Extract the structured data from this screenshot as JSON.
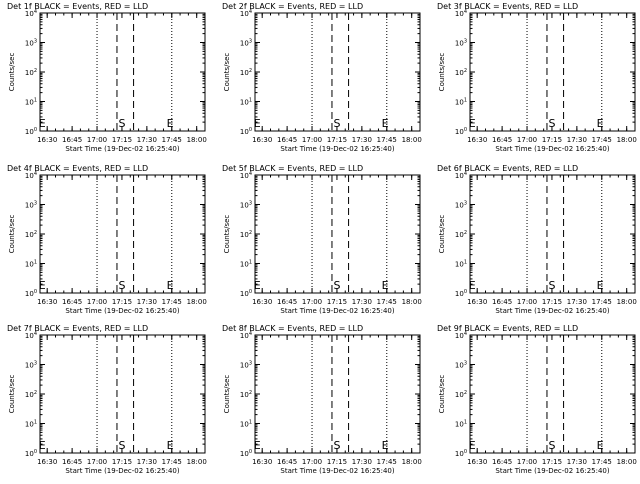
{
  "chart_data": [
    {
      "type": "line",
      "title": "Det 1f BLACK = Events, RED = LLD",
      "xlabel": "Start Time (19-Dec-02 16:25:40)",
      "ylabel": "Counts/sec",
      "x_range": [
        "16:25:40",
        "18:05"
      ],
      "xticks": [
        "16:30",
        "16:45",
        "17:00",
        "17:15",
        "17:30",
        "17:45",
        "18:00"
      ],
      "y_scale": "log",
      "ylim": [
        1,
        10000
      ],
      "yticks": [
        "10^0",
        "10^1",
        "10^2",
        "10^3",
        "10^4"
      ],
      "dotted_lines": [
        "16:25:40",
        "17:00",
        "17:45",
        "18:05"
      ],
      "dashed_lines": [
        "17:12",
        "17:22"
      ],
      "markers": [
        {
          "label": "E",
          "x": "16:27"
        },
        {
          "label": "S",
          "x": "17:15"
        },
        {
          "label": "E",
          "x": "17:44"
        }
      ],
      "series": []
    },
    {
      "type": "line",
      "title": "Det 2f BLACK = Events, RED = LLD",
      "xlabel": "Start Time (19-Dec-02 16:25:40)",
      "ylabel": "Counts/sec",
      "x_range": [
        "16:25:40",
        "18:05"
      ],
      "xticks": [
        "16:30",
        "16:45",
        "17:00",
        "17:15",
        "17:30",
        "17:45",
        "18:00"
      ],
      "y_scale": "log",
      "ylim": [
        1,
        10000
      ],
      "yticks": [
        "10^0",
        "10^1",
        "10^2",
        "10^3",
        "10^4"
      ],
      "dotted_lines": [
        "16:25:40",
        "17:00",
        "17:45",
        "18:05"
      ],
      "dashed_lines": [
        "17:12",
        "17:22"
      ],
      "markers": [
        {
          "label": "E",
          "x": "16:27"
        },
        {
          "label": "S",
          "x": "17:15"
        },
        {
          "label": "E",
          "x": "17:44"
        }
      ],
      "series": []
    },
    {
      "type": "line",
      "title": "Det 3f BLACK = Events, RED = LLD",
      "xlabel": "Start Time (19-Dec-02 16:25:40)",
      "ylabel": "Counts/sec",
      "x_range": [
        "16:25:40",
        "18:05"
      ],
      "xticks": [
        "16:30",
        "16:45",
        "17:00",
        "17:15",
        "17:30",
        "17:45",
        "18:00"
      ],
      "y_scale": "log",
      "ylim": [
        1,
        10000
      ],
      "yticks": [
        "10^0",
        "10^1",
        "10^2",
        "10^3",
        "10^4"
      ],
      "dotted_lines": [
        "16:25:40",
        "17:00",
        "17:45",
        "18:05"
      ],
      "dashed_lines": [
        "17:12",
        "17:22"
      ],
      "markers": [
        {
          "label": "E",
          "x": "16:27"
        },
        {
          "label": "S",
          "x": "17:15"
        },
        {
          "label": "E",
          "x": "17:44"
        }
      ],
      "series": []
    },
    {
      "type": "line",
      "title": "Det 4f BLACK = Events, RED = LLD",
      "xlabel": "Start Time (19-Dec-02 16:25:40)",
      "ylabel": "Counts/sec",
      "x_range": [
        "16:25:40",
        "18:05"
      ],
      "xticks": [
        "16:30",
        "16:45",
        "17:00",
        "17:15",
        "17:30",
        "17:45",
        "18:00"
      ],
      "y_scale": "log",
      "ylim": [
        1,
        10000
      ],
      "yticks": [
        "10^0",
        "10^1",
        "10^2",
        "10^3",
        "10^4"
      ],
      "dotted_lines": [
        "16:25:40",
        "17:00",
        "17:45",
        "18:05"
      ],
      "dashed_lines": [
        "17:12",
        "17:22"
      ],
      "markers": [
        {
          "label": "E",
          "x": "16:27"
        },
        {
          "label": "S",
          "x": "17:15"
        },
        {
          "label": "E",
          "x": "17:44"
        }
      ],
      "series": []
    },
    {
      "type": "line",
      "title": "Det 5f BLACK = Events, RED = LLD",
      "xlabel": "Start Time (19-Dec-02 16:25:40)",
      "ylabel": "Counts/sec",
      "x_range": [
        "16:25:40",
        "18:05"
      ],
      "xticks": [
        "16:30",
        "16:45",
        "17:00",
        "17:15",
        "17:30",
        "17:45",
        "18:00"
      ],
      "y_scale": "log",
      "ylim": [
        1,
        10000
      ],
      "yticks": [
        "10^0",
        "10^1",
        "10^2",
        "10^3",
        "10^4"
      ],
      "dotted_lines": [
        "16:25:40",
        "17:00",
        "17:45",
        "18:05"
      ],
      "dashed_lines": [
        "17:12",
        "17:22"
      ],
      "markers": [
        {
          "label": "E",
          "x": "16:27"
        },
        {
          "label": "S",
          "x": "17:15"
        },
        {
          "label": "E",
          "x": "17:44"
        }
      ],
      "series": []
    },
    {
      "type": "line",
      "title": "Det 6f BLACK = Events, RED = LLD",
      "xlabel": "Start Time (19-Dec-02 16:25:40)",
      "ylabel": "Counts/sec",
      "x_range": [
        "16:25:40",
        "18:05"
      ],
      "xticks": [
        "16:30",
        "16:45",
        "17:00",
        "17:15",
        "17:30",
        "17:45",
        "18:00"
      ],
      "y_scale": "log",
      "ylim": [
        1,
        10000
      ],
      "yticks": [
        "10^0",
        "10^1",
        "10^2",
        "10^3",
        "10^4"
      ],
      "dotted_lines": [
        "16:25:40",
        "17:00",
        "17:45",
        "18:05"
      ],
      "dashed_lines": [
        "17:12",
        "17:22"
      ],
      "markers": [
        {
          "label": "E",
          "x": "16:27"
        },
        {
          "label": "S",
          "x": "17:15"
        },
        {
          "label": "E",
          "x": "17:44"
        }
      ],
      "series": []
    },
    {
      "type": "line",
      "title": "Det 7f BLACK = Events, RED = LLD",
      "xlabel": "Start Time (19-Dec-02 16:25:40)",
      "ylabel": "Counts/sec",
      "x_range": [
        "16:25:40",
        "18:05"
      ],
      "xticks": [
        "16:30",
        "16:45",
        "17:00",
        "17:15",
        "17:30",
        "17:45",
        "18:00"
      ],
      "y_scale": "log",
      "ylim": [
        1,
        10000
      ],
      "yticks": [
        "10^0",
        "10^1",
        "10^2",
        "10^3",
        "10^4"
      ],
      "dotted_lines": [
        "16:25:40",
        "17:00",
        "17:45",
        "18:05"
      ],
      "dashed_lines": [
        "17:12",
        "17:22"
      ],
      "markers": [
        {
          "label": "E",
          "x": "16:27"
        },
        {
          "label": "S",
          "x": "17:15"
        },
        {
          "label": "E",
          "x": "17:44"
        }
      ],
      "series": []
    },
    {
      "type": "line",
      "title": "Det 8f BLACK = Events, RED = LLD",
      "xlabel": "Start Time (19-Dec-02 16:25:40)",
      "ylabel": "Counts/sec",
      "x_range": [
        "16:25:40",
        "18:05"
      ],
      "xticks": [
        "16:30",
        "16:45",
        "17:00",
        "17:15",
        "17:30",
        "17:45",
        "18:00"
      ],
      "y_scale": "log",
      "ylim": [
        1,
        10000
      ],
      "yticks": [
        "10^0",
        "10^1",
        "10^2",
        "10^3",
        "10^4"
      ],
      "dotted_lines": [
        "16:25:40",
        "17:00",
        "17:45",
        "18:05"
      ],
      "dashed_lines": [
        "17:12",
        "17:22"
      ],
      "markers": [
        {
          "label": "E",
          "x": "16:27"
        },
        {
          "label": "S",
          "x": "17:15"
        },
        {
          "label": "E",
          "x": "17:44"
        }
      ],
      "series": []
    },
    {
      "type": "line",
      "title": "Det 9f BLACK = Events, RED = LLD",
      "xlabel": "Start Time (19-Dec-02 16:25:40)",
      "ylabel": "Counts/sec",
      "x_range": [
        "16:25:40",
        "18:05"
      ],
      "xticks": [
        "16:30",
        "16:45",
        "17:00",
        "17:15",
        "17:30",
        "17:45",
        "18:00"
      ],
      "y_scale": "log",
      "ylim": [
        1,
        10000
      ],
      "yticks": [
        "10^0",
        "10^1",
        "10^2",
        "10^3",
        "10^4"
      ],
      "dotted_lines": [
        "16:25:40",
        "17:00",
        "17:45",
        "18:05"
      ],
      "dashed_lines": [
        "17:12",
        "17:22"
      ],
      "markers": [
        {
          "label": "E",
          "x": "16:27"
        },
        {
          "label": "S",
          "x": "17:15"
        },
        {
          "label": "E",
          "x": "17:44"
        }
      ],
      "series": []
    }
  ]
}
